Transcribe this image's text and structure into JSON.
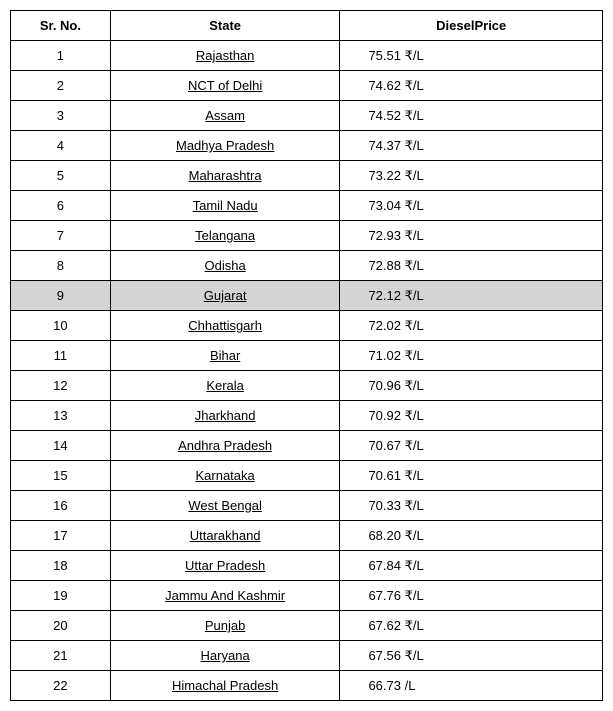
{
  "table": {
    "columns": [
      "Sr. No.",
      "State",
      "DieselPrice"
    ],
    "highlighted_row_index": 8,
    "highlight_color": "#d4d4d4",
    "border_color": "#000000",
    "header_font_weight": "bold",
    "currency_symbol": "₹",
    "unit": "/L",
    "rows": [
      {
        "sr": "1",
        "state": "Rajasthan",
        "price": "75.51 ₹/L"
      },
      {
        "sr": "2",
        "state": "NCT of Delhi",
        "price": "74.62 ₹/L"
      },
      {
        "sr": "3",
        "state": "Assam",
        "price": "74.52 ₹/L"
      },
      {
        "sr": "4",
        "state": "Madhya Pradesh",
        "price": "74.37 ₹/L"
      },
      {
        "sr": "5",
        "state": "Maharashtra",
        "price": "73.22 ₹/L"
      },
      {
        "sr": "6",
        "state": "Tamil Nadu",
        "price": "73.04 ₹/L"
      },
      {
        "sr": "7",
        "state": "Telangana",
        "price": "72.93 ₹/L"
      },
      {
        "sr": "8",
        "state": "Odisha",
        "price": "72.88 ₹/L"
      },
      {
        "sr": "9",
        "state": "Gujarat",
        "price": "72.12 ₹/L"
      },
      {
        "sr": "10",
        "state": "Chhattisgarh",
        "price": "72.02 ₹/L"
      },
      {
        "sr": "11",
        "state": "Bihar",
        "price": "71.02 ₹/L"
      },
      {
        "sr": "12",
        "state": "Kerala",
        "price": "70.96 ₹/L"
      },
      {
        "sr": "13",
        "state": "Jharkhand",
        "price": "70.92 ₹/L"
      },
      {
        "sr": "14",
        "state": "Andhra Pradesh",
        "price": "70.67 ₹/L"
      },
      {
        "sr": "15",
        "state": "Karnataka",
        "price": "70.61 ₹/L"
      },
      {
        "sr": "16",
        "state": "West Bengal",
        "price": "70.33 ₹/L"
      },
      {
        "sr": "17",
        "state": "Uttarakhand",
        "price": "68.20 ₹/L"
      },
      {
        "sr": "18",
        "state": "Uttar Pradesh",
        "price": "67.84 ₹/L"
      },
      {
        "sr": "19",
        "state": "Jammu And Kashmir",
        "price": "67.76 ₹/L"
      },
      {
        "sr": "20",
        "state": "Punjab",
        "price": "67.62 ₹/L"
      },
      {
        "sr": "21",
        "state": "Haryana",
        "price": "67.56 ₹/L"
      },
      {
        "sr": "22",
        "state": "Himachal Pradesh",
        "price": "66.73   /L"
      }
    ]
  }
}
